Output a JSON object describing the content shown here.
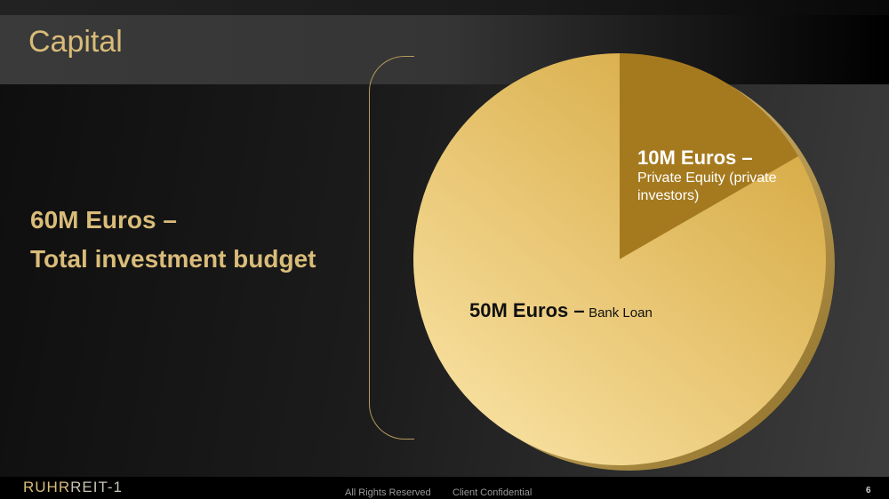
{
  "header": {
    "title": "Capital"
  },
  "summary": {
    "line1": "60M  Euros –",
    "line2": "Total investment budget"
  },
  "chart_data": {
    "type": "pie",
    "slices": [
      {
        "label": "Private Equity (private investors)",
        "value": 10,
        "value_label": "10M Euros –",
        "description": "Private Equity (private investors)",
        "color": "#a57a1f"
      },
      {
        "label": "Bank Loan",
        "value": 50,
        "value_label": "50M Euros –",
        "description": "Bank Loan",
        "color": "#e6c06a"
      }
    ],
    "unit": "M Euros"
  },
  "footer": {
    "logo_part1": "RUHR",
    "logo_part2": "REIT-1",
    "rights": "All Rights Reserved",
    "confidential": "Client Confidential",
    "page_number": "6"
  }
}
